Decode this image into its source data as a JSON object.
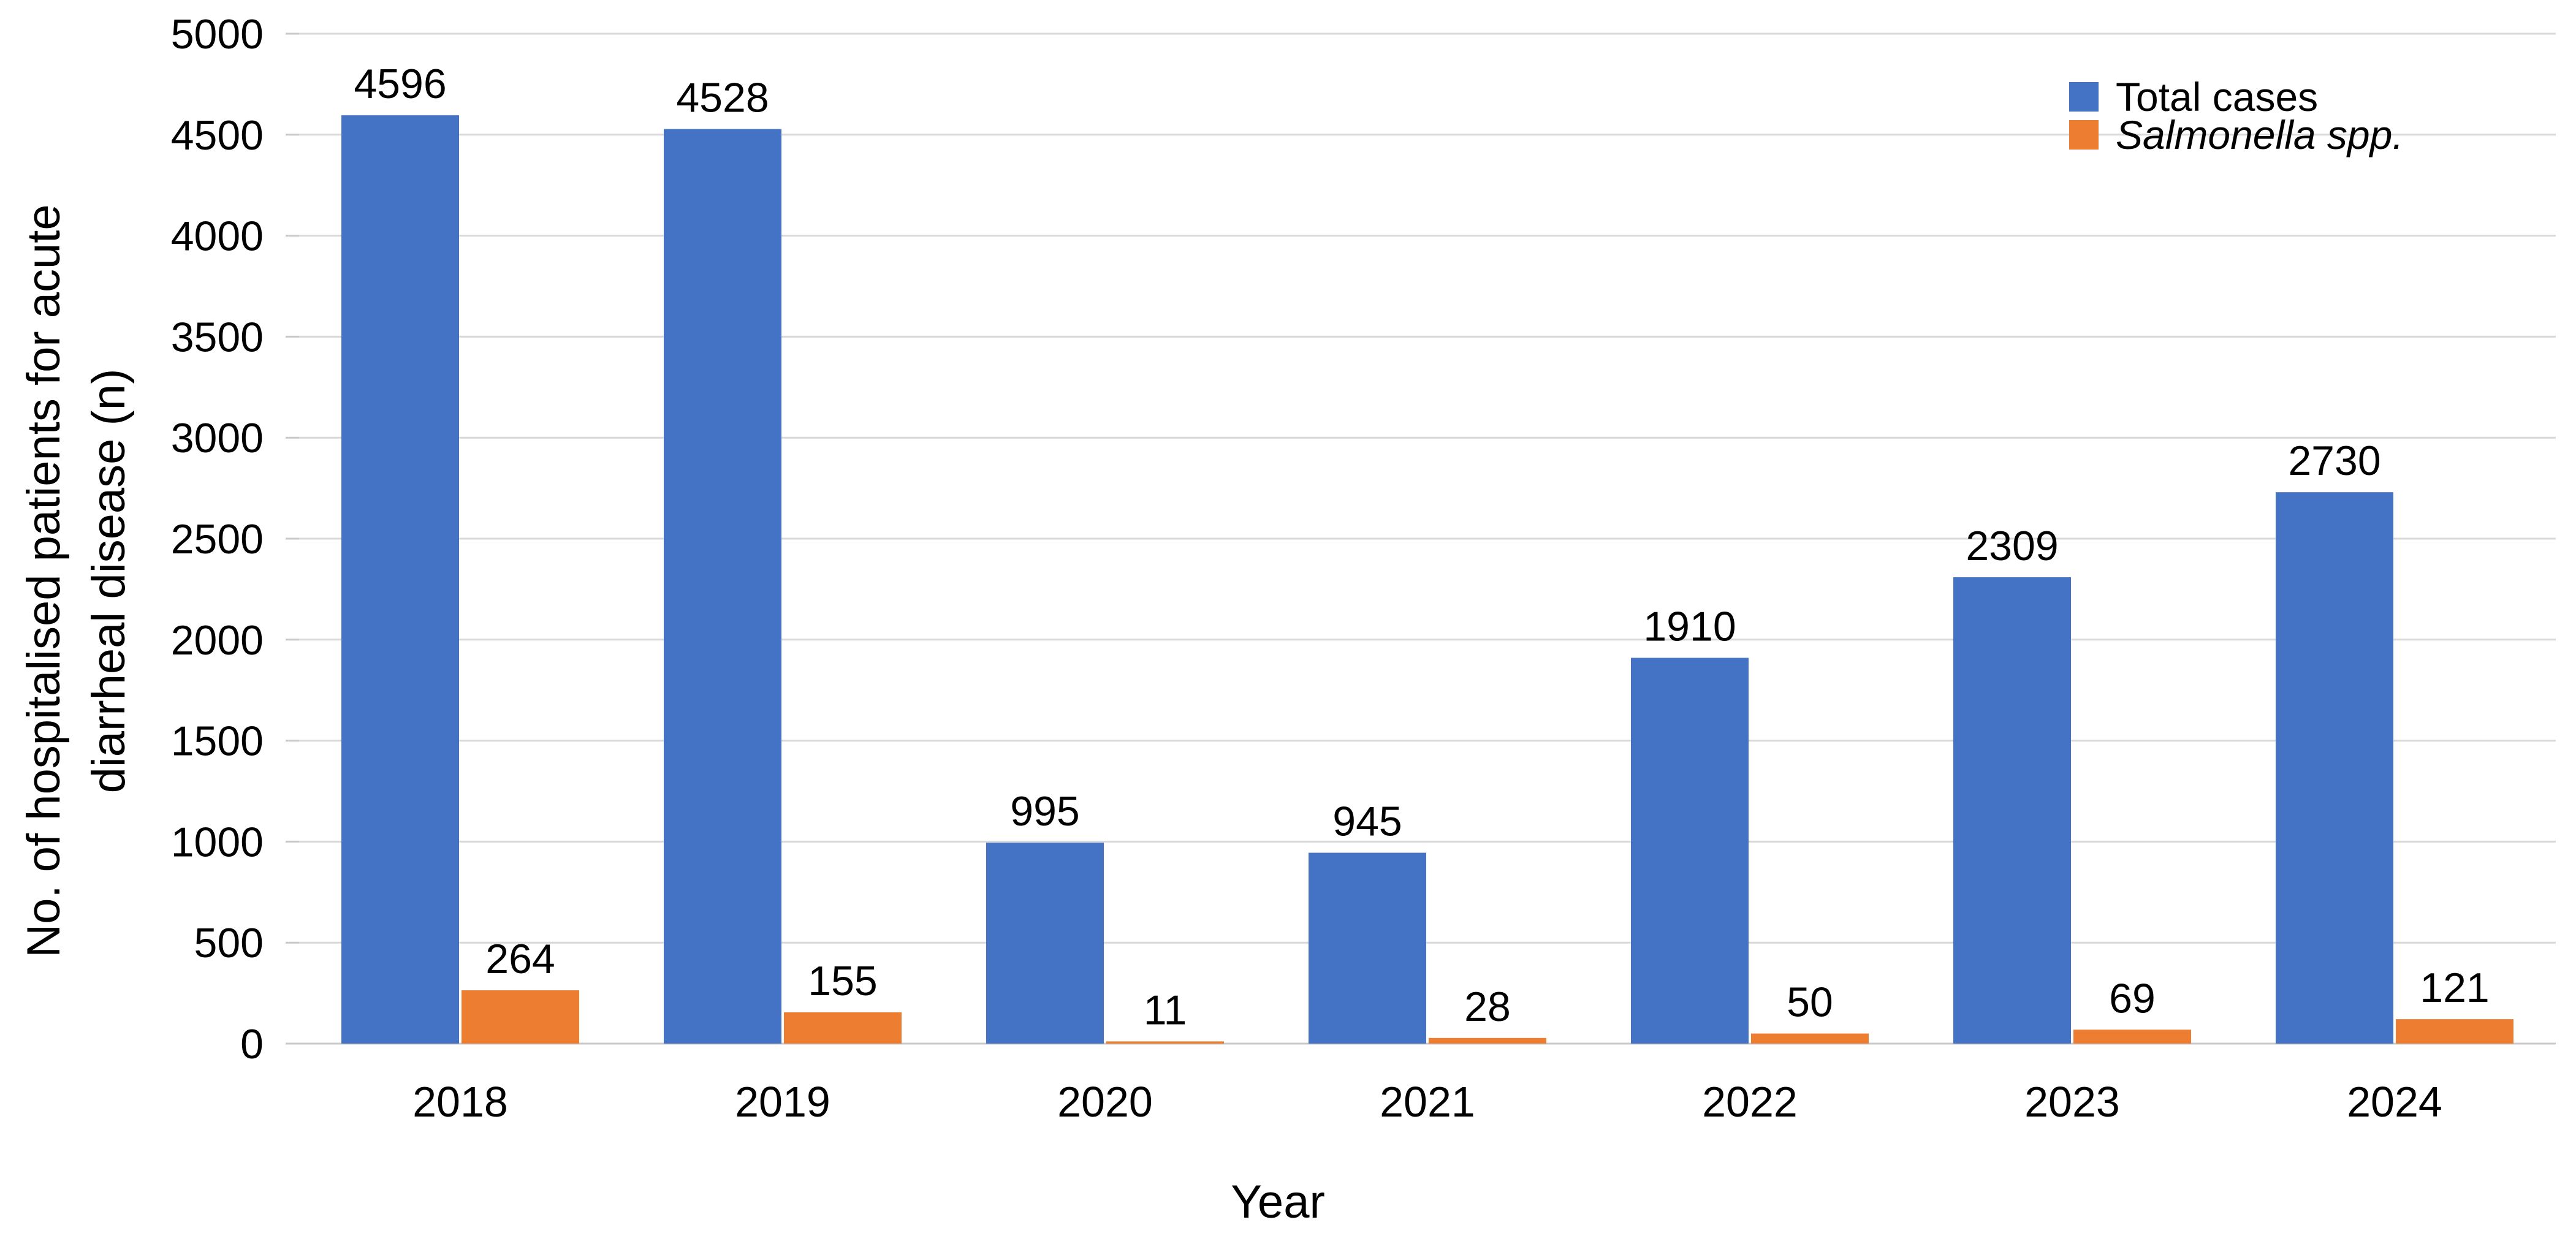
{
  "chart_data": {
    "type": "bar",
    "title": "",
    "categories": [
      "2018",
      "2019",
      "2020",
      "2021",
      "2022",
      "2023",
      "2024"
    ],
    "series": [
      {
        "name": "Total cases",
        "color": "#4472C4",
        "italic": false,
        "values": [
          4596,
          4528,
          995,
          945,
          1910,
          2309,
          2730
        ]
      },
      {
        "name": "Salmonella spp.",
        "color": "#ED7D31",
        "italic": true,
        "values": [
          264,
          155,
          11,
          28,
          50,
          69,
          121
        ]
      }
    ],
    "xlabel": "Year",
    "ylabel": "No. of hospitalised patients for acute diarrheal disease (n)",
    "ylabel_lines": [
      "No. of hospitalised patients for acute",
      "diarrheal disease (n)"
    ],
    "ylim": [
      0,
      5000
    ],
    "yticks": [
      0,
      500,
      1000,
      1500,
      2000,
      2500,
      3000,
      3500,
      4000,
      4500,
      5000
    ],
    "ytick_step": 500,
    "grid": "horizontal",
    "gridline_color": "#D9D9D9",
    "axis_line_color": "#C9C9C9",
    "text_color": "#000000",
    "background": "#FFFFFF",
    "legend_position": "top-right",
    "data_labels": true
  }
}
